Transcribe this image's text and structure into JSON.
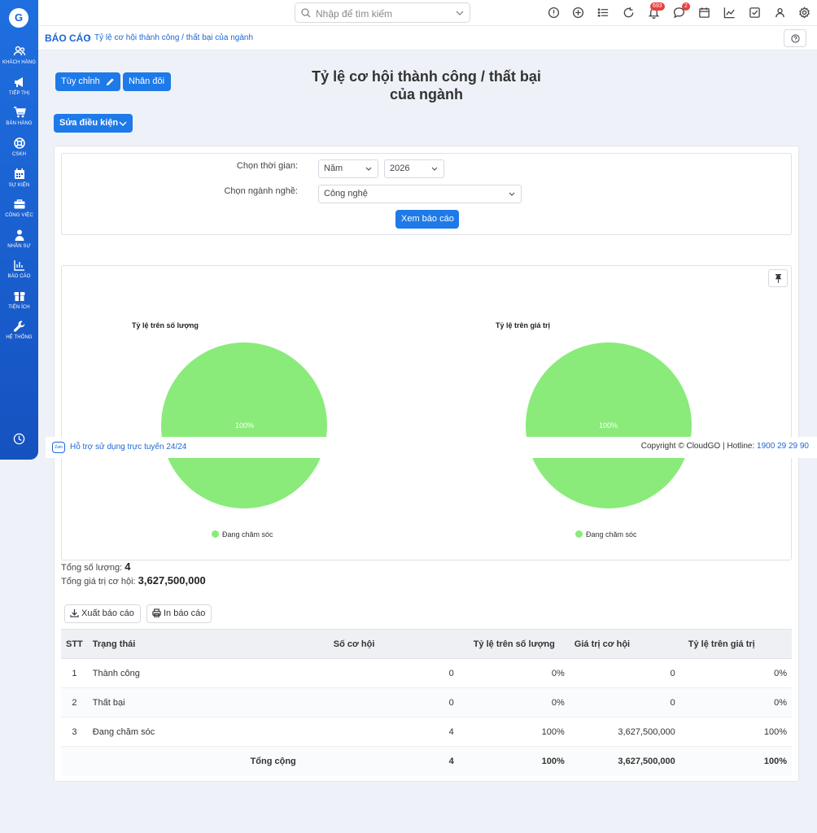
{
  "sidebar": {
    "logo": "G",
    "items": [
      {
        "label": "KHÁCH HÀNG",
        "icon": "users-icon"
      },
      {
        "label": "TIẾP THỊ",
        "icon": "megaphone-icon"
      },
      {
        "label": "BÁN HÀNG",
        "icon": "cart-icon"
      },
      {
        "label": "CSKH",
        "icon": "support-icon"
      },
      {
        "label": "SỰ KIỆN",
        "icon": "calendar-icon"
      },
      {
        "label": "CÔNG VIỆC",
        "icon": "briefcase-icon"
      },
      {
        "label": "NHÂN SỰ",
        "icon": "person-icon"
      },
      {
        "label": "BÁO CÁO",
        "icon": "report-icon"
      },
      {
        "label": "TIỆN ÍCH",
        "icon": "box-icon"
      },
      {
        "label": "HỆ THỐNG",
        "icon": "wrench-icon"
      }
    ]
  },
  "search": {
    "placeholder": "Nhập để tìm kiếm"
  },
  "topbar": {
    "notifications_count": "693",
    "messages_count": "2"
  },
  "breadcrumb": {
    "root": "BÁO CÁO",
    "separator": "›",
    "page": "Tỷ lệ cơ hội thành công / thất bại của ngành"
  },
  "actions": {
    "customize": "Tùy chỉnh",
    "duplicate": "Nhân đôi",
    "edit_conditions": "Sửa điều kiện"
  },
  "report": {
    "title_line1": "Tỷ lệ cơ hội thành công / thất bại",
    "title_line2": "của ngành"
  },
  "filters": {
    "time_label": "Chọn thời gian:",
    "time_unit": "Năm",
    "year": "2026",
    "industry_label": "Chọn ngành nghề:",
    "industry": "Công nghệ",
    "submit": "Xem báo cáo"
  },
  "chart_data": [
    {
      "type": "pie",
      "title": "Tỷ lệ trên số lượng",
      "categories": [
        "Đang chăm sóc"
      ],
      "values": [
        100
      ],
      "labels": [
        "100%"
      ],
      "colors": [
        "#8aeb7a"
      ],
      "legend": "bottom"
    },
    {
      "type": "pie",
      "title": "Tỷ lệ trên giá trị",
      "categories": [
        "Đang chăm sóc"
      ],
      "values": [
        100
      ],
      "labels": [
        "100%"
      ],
      "colors": [
        "#8aeb7a"
      ],
      "legend": "bottom"
    }
  ],
  "totals": {
    "count_label": "Tổng số lượng:",
    "count_value": "4",
    "value_label": "Tổng giá trị cơ hội:",
    "value_value": "3,627,500,000"
  },
  "export": {
    "export_label": "Xuất báo cáo",
    "print_label": "In báo cáo"
  },
  "table": {
    "headers": [
      "STT",
      "Trạng thái",
      "Số cơ hội",
      "Tỷ lệ trên số lượng",
      "Giá trị cơ hội",
      "Tỷ lệ trên giá trị"
    ],
    "rows": [
      [
        "1",
        "Thành công",
        "0",
        "0%",
        "0",
        "0%"
      ],
      [
        "2",
        "Thất bại",
        "0",
        "0%",
        "0",
        "0%"
      ],
      [
        "3",
        "Đang chăm sóc",
        "4",
        "100%",
        "3,627,500,000",
        "100%"
      ]
    ],
    "footer": [
      "Tổng cộng",
      "4",
      "100%",
      "3,627,500,000",
      "100%"
    ]
  },
  "support": {
    "zalo": "Zalo",
    "text": "Hỗ trợ sử dụng trực tuyến 24/24",
    "copyright": "Copyright © CloudGO",
    "hotline_label": "Hotline:",
    "hotline": "1900 29 29 90"
  },
  "colors": {
    "primary": "#1e7ae8",
    "sidebar": "#1a5fd0",
    "pie": "#8aeb7a"
  }
}
